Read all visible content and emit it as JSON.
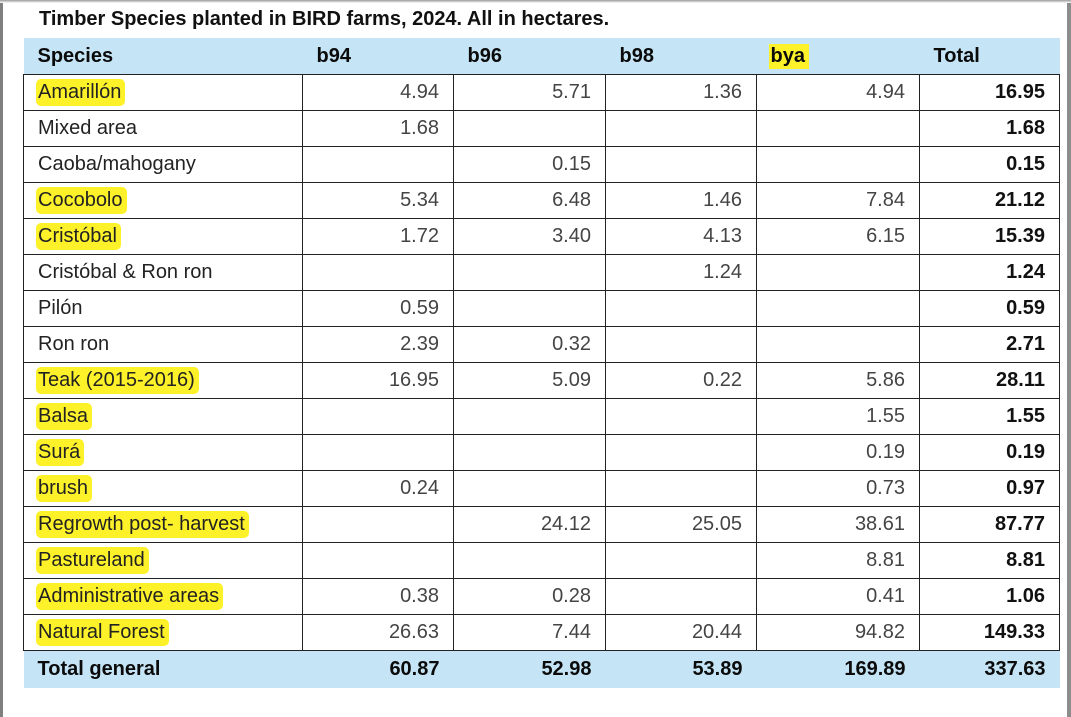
{
  "title": "Timber Species planted in BIRD farms, 2024. All in hectares.",
  "colors": {
    "header_bg": "#c5e4f5",
    "highlight": "#fdf22a"
  },
  "columns": [
    "Species",
    "b94",
    "b96",
    "b98",
    "bya",
    "Total"
  ],
  "rows": [
    {
      "species": "Amarillón",
      "b94": "4.94",
      "b96": "5.71",
      "b98": "1.36",
      "bya": "4.94",
      "total": "16.95",
      "highlight": true
    },
    {
      "species": "Mixed area",
      "b94": "1.68",
      "b96": "",
      "b98": "",
      "bya": "",
      "total": "1.68",
      "highlight": false
    },
    {
      "species": "Caoba/mahogany",
      "b94": "",
      "b96": "0.15",
      "b98": "",
      "bya": "",
      "total": "0.15",
      "highlight": false
    },
    {
      "species": "Cocobolo",
      "b94": "5.34",
      "b96": "6.48",
      "b98": "1.46",
      "bya": "7.84",
      "total": "21.12",
      "highlight": true
    },
    {
      "species": "Cristóbal",
      "b94": "1.72",
      "b96": "3.40",
      "b98": "4.13",
      "bya": "6.15",
      "total": "15.39",
      "highlight": true
    },
    {
      "species": "Cristóbal & Ron ron",
      "b94": "",
      "b96": "",
      "b98": "1.24",
      "bya": "",
      "total": "1.24",
      "highlight": false
    },
    {
      "species": "Pilón",
      "b94": "0.59",
      "b96": "",
      "b98": "",
      "bya": "",
      "total": "0.59",
      "highlight": false
    },
    {
      "species": "Ron ron",
      "b94": "2.39",
      "b96": "0.32",
      "b98": "",
      "bya": "",
      "total": "2.71",
      "highlight": false
    },
    {
      "species": "Teak (2015-2016)",
      "b94": "16.95",
      "b96": "5.09",
      "b98": "0.22",
      "bya": "5.86",
      "total": "28.11",
      "highlight": true
    },
    {
      "species": "Balsa",
      "b94": "",
      "b96": "",
      "b98": "",
      "bya": "1.55",
      "total": "1.55",
      "highlight": true
    },
    {
      "species": "Surá",
      "b94": "",
      "b96": "",
      "b98": "",
      "bya": "0.19",
      "total": "0.19",
      "highlight": true
    },
    {
      "species": "brush",
      "b94": "0.24",
      "b96": "",
      "b98": "",
      "bya": "0.73",
      "total": "0.97",
      "highlight": true
    },
    {
      "species": "Regrowth post- harvest",
      "b94": "",
      "b96": "24.12",
      "b98": "25.05",
      "bya": "38.61",
      "total": "87.77",
      "highlight": true
    },
    {
      "species": "Pastureland",
      "b94": "",
      "b96": "",
      "b98": "",
      "bya": "8.81",
      "total": "8.81",
      "highlight": true
    },
    {
      "species": "Administrative areas",
      "b94": "0.38",
      "b96": "0.28",
      "b98": "",
      "bya": "0.41",
      "total": "1.06",
      "highlight": true
    },
    {
      "species": "Natural Forest",
      "b94": "26.63",
      "b96": "7.44",
      "b98": "20.44",
      "bya": "94.82",
      "total": "149.33",
      "highlight": true
    }
  ],
  "footer": {
    "label": "Total general",
    "b94": "60.87",
    "b96": "52.98",
    "b98": "53.89",
    "bya": "169.89",
    "total": "337.63"
  }
}
